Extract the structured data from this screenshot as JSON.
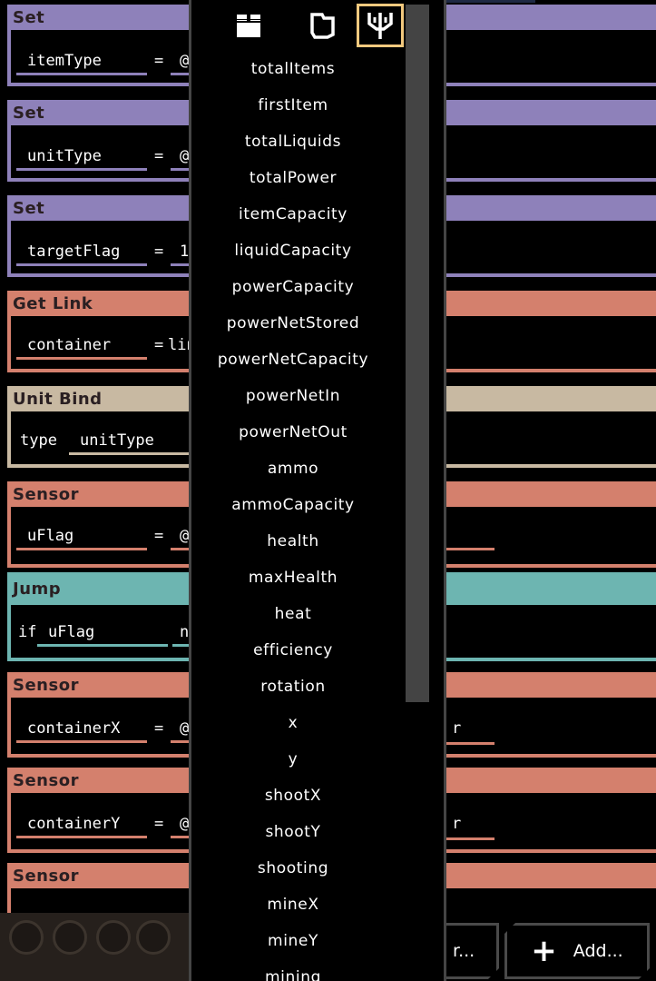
{
  "blocks": [
    {
      "kind": "Set",
      "color": "purple",
      "var": "itemType",
      "eq": "=",
      "val": "@"
    },
    {
      "kind": "Set",
      "color": "purple",
      "var": "unitType",
      "eq": "=",
      "val": "@"
    },
    {
      "kind": "Set",
      "color": "purple",
      "var": "targetFlag",
      "eq": "=",
      "val": "1"
    },
    {
      "kind": "Get Link",
      "color": "salmon",
      "var": "container",
      "eq": "=",
      "val": "lin"
    },
    {
      "kind": "Unit Bind",
      "color": "tan",
      "label": "type",
      "var": "unitType"
    },
    {
      "kind": "Sensor",
      "color": "salmon",
      "var": "uFlag",
      "eq": "=",
      "val": "@"
    },
    {
      "kind": "Jump",
      "color": "teal",
      "label": "if",
      "var": "uFlag",
      "val": "n"
    },
    {
      "kind": "Sensor",
      "color": "salmon",
      "var": "containerX",
      "eq": "=",
      "val": "@",
      "tail": "r"
    },
    {
      "kind": "Sensor",
      "color": "salmon",
      "var": "containerY",
      "eq": "=",
      "val": "@",
      "tail": "r"
    },
    {
      "kind": "Sensor",
      "color": "salmon"
    }
  ],
  "dropdown": {
    "tabs": [
      {
        "icon": "box-icon",
        "active": false
      },
      {
        "icon": "liquid-icon",
        "active": false
      },
      {
        "icon": "trident-icon",
        "active": true
      }
    ],
    "items": [
      "totalItems",
      "firstItem",
      "totalLiquids",
      "totalPower",
      "itemCapacity",
      "liquidCapacity",
      "powerCapacity",
      "powerNetStored",
      "powerNetCapacity",
      "powerNetIn",
      "powerNetOut",
      "ammo",
      "ammoCapacity",
      "health",
      "maxHealth",
      "heat",
      "efficiency",
      "rotation",
      "x",
      "y",
      "shootX",
      "shootY",
      "shooting",
      "mineX",
      "mineY",
      "mining"
    ]
  },
  "buttons": {
    "edit_label": "r...",
    "add_label": "Add..."
  },
  "colors": {
    "purple": "#8e81ba",
    "salmon": "#d4806d",
    "tan": "#c8b9a2",
    "teal": "#6db5b1",
    "tab_active": "#f3c97e"
  }
}
